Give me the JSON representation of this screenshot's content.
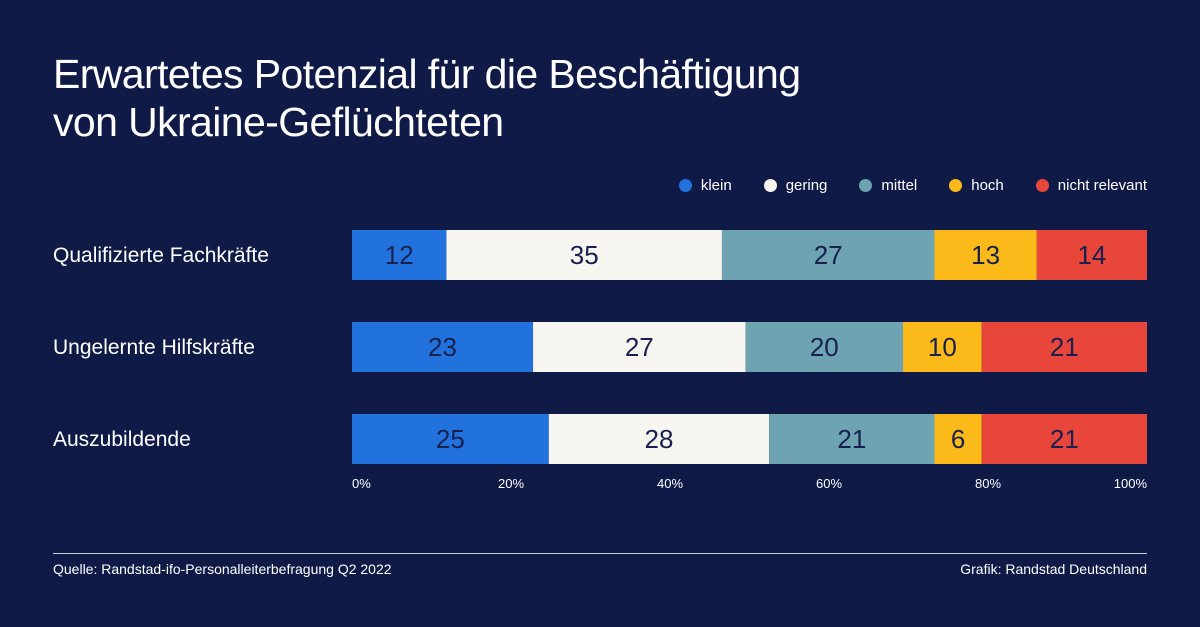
{
  "chart_data": {
    "type": "bar",
    "orientation": "horizontal",
    "stacked": true,
    "title": [
      "Erwartetes Potenzial für die Beschäftigung",
      "von Ukraine-Geflüchteten"
    ],
    "categories": [
      "Qualifizierte Fachkräfte",
      "Ungelernte Hilfskräfte",
      "Auszubildende"
    ],
    "series": [
      {
        "name": "klein",
        "color": "#2272de",
        "values": [
          12,
          23,
          25
        ]
      },
      {
        "name": "gering",
        "color": "#f7f5ef",
        "values": [
          35,
          27,
          28
        ]
      },
      {
        "name": "mittel",
        "color": "#6ea3b2",
        "values": [
          27,
          20,
          21
        ]
      },
      {
        "name": "hoch",
        "color": "#fbba19",
        "values": [
          13,
          10,
          6
        ]
      },
      {
        "name": "nicht relevant",
        "color": "#e8463a",
        "values": [
          14,
          21,
          21
        ]
      }
    ],
    "xticks": [
      "0%",
      "20%",
      "40%",
      "60%",
      "80%",
      "100%"
    ],
    "xlim": [
      0,
      100
    ],
    "legend_position": "top-right",
    "grid": false
  },
  "footer": {
    "source": "Quelle: Randstad-ifo-Personalleiterbefragung Q2 2022",
    "credit": "Grafik: Randstad Deutschland"
  }
}
